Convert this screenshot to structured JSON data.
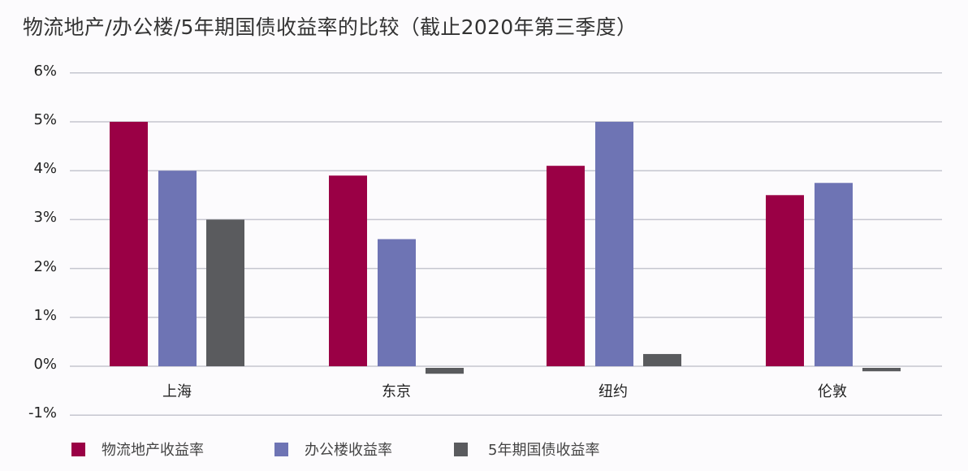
{
  "title": "物流地产/办公楼/5年期国债收益率的比较（截止2020年第三季度）",
  "colors": {
    "logistics": "#9a0045",
    "office": "#6e74b4",
    "bond": "#5a5b5e",
    "grid": "#c5c6cf",
    "background": "#fcfbfd"
  },
  "chart_data": {
    "type": "bar",
    "title": "物流地产/办公楼/5年期国债收益率的比较（截止2020年第三季度）",
    "xlabel": "",
    "ylabel": "",
    "categories": [
      "上海",
      "东京",
      "纽约",
      "伦敦"
    ],
    "series": [
      {
        "name": "物流地产收益率",
        "color": "#9a0045",
        "values": [
          5.0,
          3.9,
          4.1,
          3.5
        ]
      },
      {
        "name": "办公楼收益率",
        "color": "#6e74b4",
        "values": [
          4.0,
          2.6,
          5.0,
          3.75
        ]
      },
      {
        "name": "5年期国债收益率",
        "color": "#5a5b5e",
        "values": [
          3.0,
          -0.12,
          0.25,
          -0.07
        ]
      }
    ],
    "ylim": [
      -1,
      6
    ],
    "yticks": [
      "6%",
      "5%",
      "4%",
      "3%",
      "2%",
      "1%",
      "0%",
      "-1%"
    ],
    "ytick_values": [
      6,
      5,
      4,
      3,
      2,
      1,
      0,
      -1
    ],
    "grid": true,
    "legend_position": "bottom"
  },
  "legend": [
    {
      "label": "物流地产收益率",
      "color": "#9a0045"
    },
    {
      "label": "办公楼收益率",
      "color": "#6e74b4"
    },
    {
      "label": "5年期国债收益率",
      "color": "#5a5b5e"
    }
  ]
}
